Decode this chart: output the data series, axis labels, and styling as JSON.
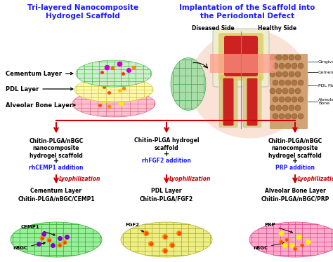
{
  "title_left": "Tri-layered Nanocomposite\nHydrogel Scaffold",
  "title_right": "Implantation of the Scaffold into\nthe Periodontal Defect",
  "layers": [
    "Cementum Layer",
    "PDL Layer",
    "Alveolar Bone Layer"
  ],
  "diseased_label": "Diseased Side",
  "healthy_label": "Healthy Side",
  "tooth_labels": [
    "Gingiva",
    "Cementum",
    "PDL Fibers",
    "Alveolar\nBone"
  ],
  "col1_text": "Chitin-PLGA/nBGC\nnanocomposite\nhydrogel scaffold",
  "col1_add": "rhCEMP1 addition",
  "col2_text": "Chitin-PLGA hydrogel\nscaffold",
  "col2_add": "rhFGF2 addition",
  "col3_text": "Chitin-PLGA/nBGC\nnanocomposite\nhydrogel scaffold",
  "col3_add": "PRP addition",
  "lyoph_label": "Lyophilization",
  "result1": "Cementum Layer\nChitin-PLGA/nBGC/CEMP1",
  "result2": "PDL Layer\nChitin-PLGA/FGF2",
  "result3": "Alveolar Bone Layer\nChitin-PLGA/nBGC/PRP",
  "cemp1_label": "CEMP1",
  "nbgc_label1": "nBGC",
  "fgf2_label": "FGF2",
  "nbgc_label2": "nBGC",
  "prp_label": "PRP",
  "blue_color": "#1a1aff",
  "red_color": "#cc0000",
  "bg_color": "#ffffff"
}
